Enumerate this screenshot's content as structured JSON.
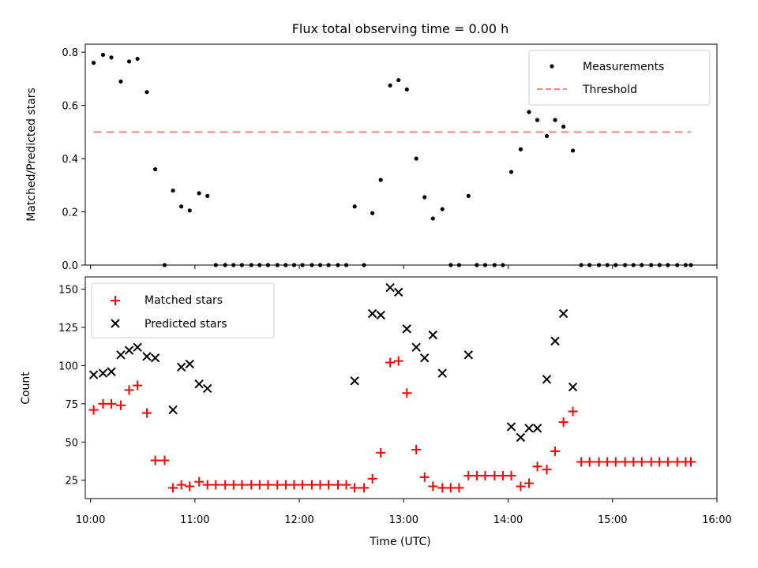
{
  "chart_data": {
    "type": "scatter",
    "title": "Flux total observing time = 0.00 h",
    "xlabel": "Time (UTC)",
    "xticks": [
      "10:00",
      "11:00",
      "12:00",
      "13:00",
      "14:00",
      "15:00",
      "16:00"
    ],
    "xlim": [
      -0.05,
      6.0
    ],
    "top": {
      "ylabel": "Matched/Predicted stars",
      "ylim": [
        0,
        0.83
      ],
      "yticks": [
        "0.0",
        "0.2",
        "0.4",
        "0.6",
        "0.8"
      ],
      "legend": [
        "Measurements",
        "Threshold"
      ],
      "threshold": {
        "value": 0.5,
        "x": [
          0.03,
          5.75
        ]
      },
      "measurements": {
        "x": [
          0.03,
          0.12,
          0.2,
          0.29,
          0.37,
          0.45,
          0.54,
          0.62,
          0.71,
          0.79,
          0.87,
          0.95,
          1.04,
          1.12,
          1.2,
          1.29,
          1.37,
          1.45,
          1.54,
          1.62,
          1.7,
          1.79,
          1.87,
          1.95,
          2.03,
          2.12,
          2.2,
          2.28,
          2.37,
          2.45,
          2.53,
          2.62,
          2.7,
          2.78,
          2.87,
          2.95,
          3.03,
          3.12,
          3.2,
          3.28,
          3.37,
          3.45,
          3.53,
          3.62,
          3.7,
          3.78,
          3.87,
          3.95,
          4.03,
          4.12,
          4.2,
          4.28,
          4.37,
          4.45,
          4.53,
          4.62,
          4.7,
          4.78,
          4.87,
          4.95,
          5.03,
          5.12,
          5.2,
          5.28,
          5.37,
          5.45,
          5.53,
          5.62,
          5.7,
          5.75
        ],
        "y": [
          0.76,
          0.79,
          0.78,
          0.69,
          0.765,
          0.775,
          0.65,
          0.36,
          0.0,
          0.28,
          0.22,
          0.205,
          0.27,
          0.26,
          0.0,
          0.0,
          0.0,
          0.0,
          0.0,
          0.0,
          0.0,
          0.0,
          0.0,
          0.0,
          0.0,
          0.0,
          0.0,
          0.0,
          0.0,
          0.0,
          0.22,
          0.0,
          0.195,
          0.32,
          0.675,
          0.695,
          0.66,
          0.4,
          0.255,
          0.175,
          0.21,
          0.0,
          0.0,
          0.26,
          0.0,
          0.0,
          0.0,
          0.0,
          0.35,
          0.435,
          0.575,
          0.545,
          0.485,
          0.545,
          0.52,
          0.43,
          0.0,
          0.0,
          0.0,
          0.0,
          0.0,
          0.0,
          0.0,
          0.0,
          0.0,
          0.0,
          0.0,
          0.0,
          0.0,
          0.0
        ]
      }
    },
    "bottom": {
      "ylabel": "Count",
      "ylim": [
        13,
        158
      ],
      "yticks": [
        "25",
        "50",
        "75",
        "100",
        "125",
        "150"
      ],
      "legend": [
        "Matched stars",
        "Predicted stars"
      ],
      "matched": {
        "x": [
          0.03,
          0.12,
          0.2,
          0.29,
          0.37,
          0.45,
          0.54,
          0.62,
          0.71,
          0.79,
          0.87,
          0.95,
          1.04,
          1.12,
          1.2,
          1.29,
          1.37,
          1.45,
          1.54,
          1.62,
          1.7,
          1.79,
          1.87,
          1.95,
          2.03,
          2.12,
          2.2,
          2.28,
          2.37,
          2.45,
          2.53,
          2.62,
          2.7,
          2.78,
          2.87,
          2.95,
          3.03,
          3.12,
          3.2,
          3.28,
          3.37,
          3.45,
          3.53,
          3.62,
          3.7,
          3.78,
          3.87,
          3.95,
          4.03,
          4.12,
          4.2,
          4.28,
          4.37,
          4.45,
          4.53,
          4.62,
          4.7,
          4.78,
          4.87,
          4.95,
          5.03,
          5.12,
          5.2,
          5.28,
          5.37,
          5.45,
          5.53,
          5.62,
          5.7,
          5.75
        ],
        "y": [
          71,
          75,
          75,
          74,
          84,
          87,
          69,
          38,
          38,
          20,
          22,
          21,
          24,
          22,
          22,
          22,
          22,
          22,
          22,
          22,
          22,
          22,
          22,
          22,
          22,
          22,
          22,
          22,
          22,
          22,
          20,
          20,
          26,
          43,
          102,
          103,
          82,
          45,
          27,
          21,
          20,
          20,
          20,
          28,
          28,
          28,
          28,
          28,
          28,
          21,
          23,
          34,
          32,
          44,
          63,
          70,
          37,
          37,
          37,
          37,
          37,
          37,
          37,
          37,
          37,
          37,
          37,
          37,
          37,
          37
        ]
      },
      "predicted": {
        "x": [
          0.03,
          0.12,
          0.2,
          0.29,
          0.37,
          0.45,
          0.54,
          0.62,
          0.79,
          0.87,
          0.95,
          1.04,
          1.12,
          2.53,
          2.7,
          2.78,
          2.87,
          2.95,
          3.03,
          3.12,
          3.2,
          3.28,
          3.37,
          3.62,
          4.03,
          4.12,
          4.2,
          4.28,
          4.37,
          4.45,
          4.53,
          4.62
        ],
        "y": [
          94,
          95,
          96,
          107,
          110,
          112,
          106,
          105,
          71,
          99,
          101,
          88,
          85,
          90,
          134,
          133,
          151,
          148,
          124,
          112,
          105,
          120,
          95,
          107,
          60,
          53,
          59,
          59,
          91,
          116,
          134,
          86
        ]
      }
    }
  }
}
